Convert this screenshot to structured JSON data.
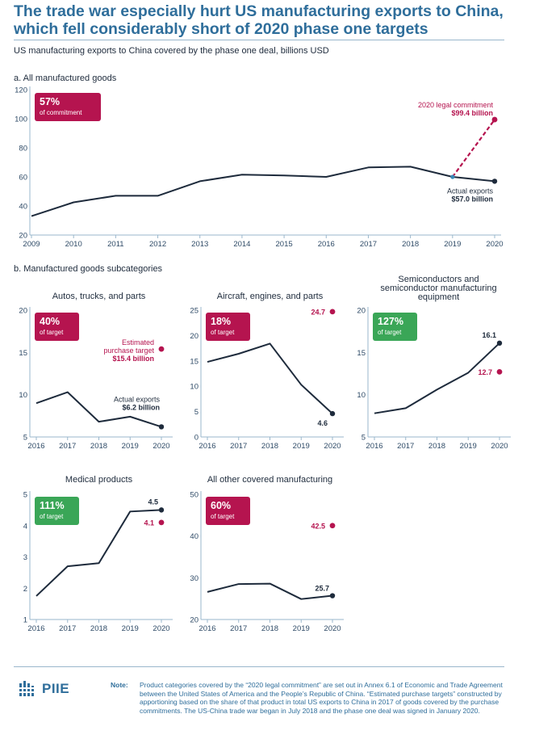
{
  "header": {
    "title": "The trade war especially hurt US manufacturing exports to China, which fell considerably short of 2020 phase one targets",
    "subtitle": "US manufacturing exports to China covered by the phase one deal, billions USD"
  },
  "colors": {
    "line": "#1e2b3c",
    "target": "#b5144f",
    "badge_red": "#b5144f",
    "badge_green": "#3aa657",
    "axis": "#9ab7cc",
    "title": "#2f6e9b"
  },
  "section_labels": {
    "a": "a. All manufactured goods",
    "b": "b. Manufactured goods subcategories"
  },
  "chart_data": [
    {
      "type": "line",
      "id": "all",
      "title": "a. All manufactured goods",
      "x": [
        "2009",
        "2010",
        "2011",
        "2012",
        "2013",
        "2014",
        "2015",
        "2016",
        "2017",
        "2018",
        "2019",
        "2020"
      ],
      "series": [
        {
          "name": "Actual exports",
          "values": [
            33,
            42.5,
            47,
            47,
            57,
            61.5,
            61,
            60,
            66.5,
            67,
            60,
            57
          ]
        }
      ],
      "target": {
        "from_x": "2019",
        "from_y": 60,
        "x": "2020",
        "y": 99.4
      },
      "yticks": [
        20,
        40,
        60,
        80,
        100,
        120
      ],
      "ylim": [
        20,
        120
      ],
      "badge": {
        "pct": "57%",
        "sub": "of commitment",
        "color": "red"
      },
      "annotations": {
        "target_label": "2020 legal commitment",
        "target_value": "$99.4 billion",
        "actual_label": "Actual exports",
        "actual_value": "$57.0 billion"
      }
    },
    {
      "type": "line",
      "id": "autos",
      "title": "Autos, trucks, and parts",
      "x": [
        "2016",
        "2017",
        "2018",
        "2019",
        "2020"
      ],
      "series": [
        {
          "name": "Actual exports",
          "values": [
            9,
            10.3,
            6.8,
            7.4,
            6.2
          ]
        }
      ],
      "target": {
        "x": "2020",
        "y": 15.4
      },
      "yticks": [
        5,
        10,
        15,
        20
      ],
      "ylim": [
        5,
        20
      ],
      "badge": {
        "pct": "40%",
        "sub": "of target",
        "color": "red"
      },
      "annotations": {
        "target_label_1": "Estimated",
        "target_label_2": "purchase target",
        "target_value": "$15.4 billion",
        "actual_label": "Actual exports",
        "actual_value": "$6.2 billion"
      }
    },
    {
      "type": "line",
      "id": "aircraft",
      "title": "Aircraft, engines, and parts",
      "x": [
        "2016",
        "2017",
        "2018",
        "2019",
        "2020"
      ],
      "series": [
        {
          "name": "Actual exports",
          "values": [
            14.8,
            16.4,
            18.4,
            10.3,
            4.6
          ]
        }
      ],
      "target": {
        "x": "2020",
        "y": 24.7
      },
      "yticks": [
        0,
        5,
        10,
        15,
        20,
        25
      ],
      "ylim": [
        0,
        25
      ],
      "badge": {
        "pct": "18%",
        "sub": "of target",
        "color": "red"
      },
      "labels": {
        "target": "24.7",
        "actual": "4.6"
      }
    },
    {
      "type": "line",
      "id": "semis",
      "title_lines": [
        "Semiconductors and",
        "semiconductor manufacturing",
        "equipment"
      ],
      "x": [
        "2016",
        "2017",
        "2018",
        "2019",
        "2020"
      ],
      "series": [
        {
          "name": "Actual exports",
          "values": [
            7.8,
            8.4,
            10.6,
            12.6,
            16.1
          ]
        }
      ],
      "target": {
        "x": "2020",
        "y": 12.7
      },
      "yticks": [
        5,
        10,
        15,
        20
      ],
      "ylim": [
        5,
        20
      ],
      "badge": {
        "pct": "127%",
        "sub": "of target",
        "color": "green"
      },
      "labels": {
        "target": "12.7",
        "actual": "16.1"
      }
    },
    {
      "type": "line",
      "id": "medical",
      "title": "Medical products",
      "x": [
        "2016",
        "2017",
        "2018",
        "2019",
        "2020"
      ],
      "series": [
        {
          "name": "Actual exports",
          "values": [
            1.75,
            2.7,
            2.8,
            4.45,
            4.5
          ]
        }
      ],
      "target": {
        "x": "2020",
        "y": 4.1
      },
      "yticks": [
        1,
        2,
        3,
        4,
        5
      ],
      "ylim": [
        1,
        5
      ],
      "badge": {
        "pct": "111%",
        "sub": "of target",
        "color": "green"
      },
      "labels": {
        "target": "4.1",
        "actual": "4.5"
      }
    },
    {
      "type": "line",
      "id": "other",
      "title": "All other covered manufacturing",
      "x": [
        "2016",
        "2017",
        "2018",
        "2019",
        "2020"
      ],
      "series": [
        {
          "name": "Actual exports",
          "values": [
            26.6,
            28.5,
            28.6,
            24.9,
            25.7
          ]
        }
      ],
      "target": {
        "x": "2020",
        "y": 42.5
      },
      "yticks": [
        20,
        30,
        40,
        50
      ],
      "ylim": [
        20,
        50
      ],
      "badge": {
        "pct": "60%",
        "sub": "of target",
        "color": "red"
      },
      "labels": {
        "target": "42.5",
        "actual": "25.7"
      }
    }
  ],
  "footer": {
    "logo": "PIIE",
    "note_label": "Note:",
    "note_text": "Product categories covered by the “2020 legal commitment” are set out in Annex 6.1 of Economic and Trade Agreement between the United States of America and the People’s Republic of China. “Estimated purchase targets” constructed by apportioning based on the share of that product in total US exports to China in 2017 of goods covered by the purchase commitments. The US-China trade war began in July 2018 and the phase one deal was signed in January 2020."
  }
}
